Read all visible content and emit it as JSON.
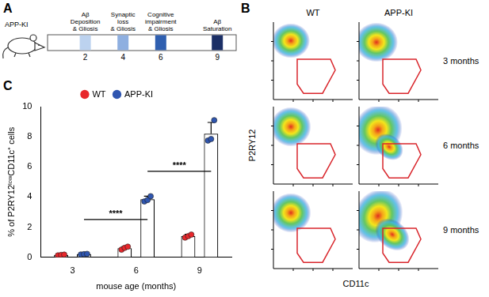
{
  "panel_a": {
    "letter": "A",
    "model": "APP-KI",
    "events": [
      {
        "month": 2,
        "label_lines": [
          "Aβ",
          "Deposition",
          "& Gliosis"
        ],
        "color": "#bcd2ef"
      },
      {
        "month": 4,
        "label_lines": [
          "Synaptic",
          "loss",
          "& Gliosis"
        ],
        "color": "#8eafe0"
      },
      {
        "month": 6,
        "label_lines": [
          "Cognitive",
          "impairment",
          "& Gliosis"
        ],
        "color": "#2f5fb0"
      },
      {
        "month": 9,
        "label_lines": [
          "Aβ",
          "Saturation"
        ],
        "color": "#1b2f66"
      }
    ]
  },
  "panel_b": {
    "letter": "B",
    "columns": [
      "WT",
      "APP-KI"
    ],
    "rows": [
      "3 months",
      "6 months",
      "9 months"
    ],
    "x_label": "CD11c",
    "y_label": "P2RY12",
    "gate_color": "#d9262c"
  },
  "chart_data": {
    "letter": "C",
    "type": "bar",
    "categories": [
      "3",
      "6",
      "9"
    ],
    "x_label": "mouse age (months)",
    "y_label": "% of P2RY12ˡᵒʷCD11c⁺ cells",
    "ylim": [
      0,
      10
    ],
    "yticks": [
      0,
      2,
      4,
      6,
      8,
      10
    ],
    "grid": false,
    "legend": "top",
    "series": [
      {
        "name": "WT",
        "color": "#e8272b",
        "values": [
          0.15,
          0.6,
          1.4
        ],
        "errors": [
          0.03,
          0.1,
          0.12
        ],
        "points": [
          [
            0.12,
            0.15,
            0.17
          ],
          [
            0.5,
            0.62,
            0.7
          ],
          [
            1.3,
            1.4,
            1.5
          ]
        ]
      },
      {
        "name": "APP-KI",
        "color": "#2f56b0",
        "values": [
          0.2,
          3.85,
          8.2
        ],
        "errors": [
          0.03,
          0.2,
          0.75
        ],
        "points": [
          [
            0.18,
            0.2,
            0.22
          ],
          [
            3.7,
            3.8,
            4.05
          ],
          [
            7.75,
            7.85,
            9.1
          ]
        ]
      }
    ],
    "annotations": [
      {
        "text": "****",
        "y": 2.5,
        "series": "APP-KI",
        "from": "3",
        "to": "6"
      },
      {
        "text": "****",
        "y": 5.7,
        "series": "APP-KI",
        "from": "6",
        "to": "9"
      }
    ]
  }
}
